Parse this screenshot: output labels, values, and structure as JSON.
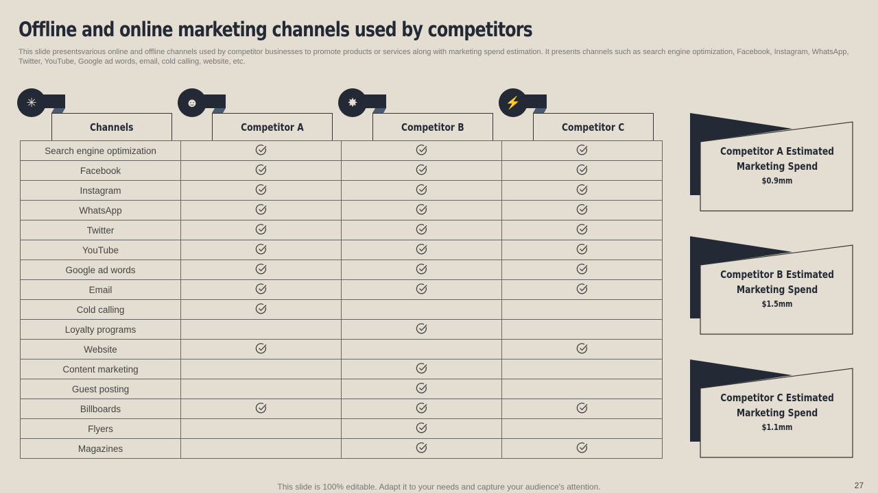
{
  "title": "Offline and online marketing channels used by competitors",
  "subtitle": "This slide presentsvarious online and offline channels used by competitor businesses to promote products or services along with marketing spend estimation. It presents channels such as search engine optimization, Facebook, Instagram, WhatsApp, Twitter, YouTube, Google ad words, email, cold calling, website, etc.",
  "headers": [
    {
      "label": "Channels",
      "icon": "network-hub-icon"
    },
    {
      "label": "Competitor A",
      "icon": "competing-heads-icon"
    },
    {
      "label": "Competitor B",
      "icon": "clash-icon"
    },
    {
      "label": "Competitor C",
      "icon": "fighting-people-icon"
    }
  ],
  "rows": [
    {
      "channel": "Search engine optimization",
      "a": true,
      "b": true,
      "c": true
    },
    {
      "channel": "Facebook",
      "a": true,
      "b": true,
      "c": true
    },
    {
      "channel": "Instagram",
      "a": true,
      "b": true,
      "c": true
    },
    {
      "channel": "WhatsApp",
      "a": true,
      "b": true,
      "c": true
    },
    {
      "channel": "Twitter",
      "a": true,
      "b": true,
      "c": true
    },
    {
      "channel": "YouTube",
      "a": true,
      "b": true,
      "c": true
    },
    {
      "channel": "Google ad words",
      "a": true,
      "b": true,
      "c": true
    },
    {
      "channel": "Email",
      "a": true,
      "b": true,
      "c": true
    },
    {
      "channel": "Cold calling",
      "a": true,
      "b": false,
      "c": false
    },
    {
      "channel": "Loyalty programs",
      "a": false,
      "b": true,
      "c": false
    },
    {
      "channel": "Website",
      "a": true,
      "b": false,
      "c": true
    },
    {
      "channel": "Content marketing",
      "a": false,
      "b": true,
      "c": false
    },
    {
      "channel": "Guest posting",
      "a": false,
      "b": true,
      "c": false
    },
    {
      "channel": "Billboards",
      "a": true,
      "b": true,
      "c": true
    },
    {
      "channel": "Flyers",
      "a": false,
      "b": true,
      "c": false
    },
    {
      "channel": "Magazines",
      "a": false,
      "b": true,
      "c": true
    }
  ],
  "spend": [
    {
      "label": "Competitor A Estimated Marketing Spend",
      "value": "$0.9mm"
    },
    {
      "label": "Competitor B Estimated Marketing Spend",
      "value": "$1.5mm"
    },
    {
      "label": "Competitor C Estimated Marketing Spend",
      "value": "$1.1mm"
    }
  ],
  "footer": "This slide is 100% editable. Adapt it to your needs and capture your audience's attention.",
  "page_number": "27",
  "colors": {
    "background": "#e4ddd1",
    "dark": "#232a35",
    "accent": "#4a5a70"
  }
}
